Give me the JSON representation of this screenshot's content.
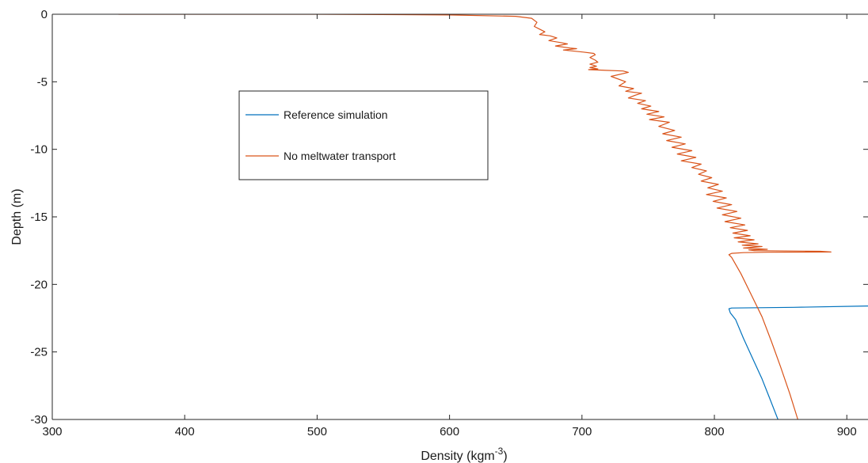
{
  "chart_data": {
    "type": "line",
    "title": "",
    "xlabel_prefix": "Density (kgm",
    "xlabel_sup": "-3",
    "xlabel_suffix": ")",
    "ylabel": "Depth (m)",
    "xlim": [
      300,
      916
    ],
    "ylim": [
      -30,
      0
    ],
    "xticks": [
      300,
      400,
      500,
      600,
      700,
      800,
      900
    ],
    "yticks": [
      0,
      -5,
      -10,
      -15,
      -20,
      -25,
      -30
    ],
    "grid": false,
    "legend_position": "upper-left inside plot area",
    "series": [
      {
        "name": "Reference simulation",
        "color": "#0072BD",
        "x": [
          916,
          860,
          813,
          811,
          812,
          816,
          822,
          829,
          836,
          842,
          848
        ],
        "y": [
          -21.6,
          -21.7,
          -21.75,
          -21.8,
          -22.1,
          -22.6,
          -24.0,
          -25.5,
          -27.0,
          -28.5,
          -30.0
        ]
      },
      {
        "name": "No meltwater transport",
        "color": "#D95319",
        "x": [
          350,
          500,
          600,
          650,
          662,
          666,
          664,
          668,
          672,
          668,
          676,
          681,
          675,
          684,
          689,
          680,
          691,
          696,
          686,
          701,
          709,
          710,
          706,
          710,
          712,
          706,
          711,
          706,
          712,
          705,
          731,
          735,
          722,
          733,
          728,
          739,
          733,
          745,
          740,
          735,
          748,
          742,
          752,
          745,
          758,
          749,
          762,
          751,
          766,
          758,
          770,
          761,
          775,
          764,
          778,
          768,
          783,
          772,
          786,
          775,
          790,
          783,
          794,
          788,
          798,
          790,
          803,
          795,
          806,
          794,
          809,
          799,
          813,
          802,
          817,
          806,
          820,
          808,
          823,
          812,
          825,
          814,
          827,
          815,
          830,
          818,
          833,
          821,
          836,
          822,
          840,
          826,
          830,
          880,
          888,
          840,
          822,
          813,
          811,
          813,
          820,
          828,
          836,
          843,
          850,
          857,
          863
        ],
        "y": [
          0,
          0,
          -0.05,
          -0.15,
          -0.3,
          -0.6,
          -0.9,
          -1.1,
          -1.3,
          -1.5,
          -1.6,
          -1.75,
          -1.95,
          -2.1,
          -2.2,
          -2.35,
          -2.5,
          -2.55,
          -2.65,
          -2.8,
          -2.9,
          -3.0,
          -3.2,
          -3.4,
          -3.55,
          -3.7,
          -3.85,
          -3.95,
          -4.05,
          -4.1,
          -4.2,
          -4.3,
          -4.6,
          -5.0,
          -5.3,
          -5.5,
          -5.7,
          -5.85,
          -6.0,
          -6.2,
          -6.4,
          -6.6,
          -6.8,
          -7.0,
          -7.2,
          -7.4,
          -7.6,
          -7.8,
          -8.0,
          -8.3,
          -8.6,
          -8.85,
          -9.1,
          -9.35,
          -9.6,
          -9.85,
          -10.1,
          -10.35,
          -10.6,
          -10.85,
          -11.1,
          -11.35,
          -11.6,
          -11.85,
          -12.1,
          -12.35,
          -12.6,
          -12.85,
          -13.1,
          -13.35,
          -13.6,
          -13.85,
          -14.1,
          -14.35,
          -14.6,
          -14.85,
          -15.1,
          -15.35,
          -15.6,
          -15.8,
          -16.0,
          -16.2,
          -16.4,
          -16.55,
          -16.7,
          -16.85,
          -17.0,
          -17.1,
          -17.2,
          -17.3,
          -17.4,
          -17.45,
          -17.5,
          -17.55,
          -17.6,
          -17.62,
          -17.65,
          -17.7,
          -17.8,
          -18.0,
          -19.2,
          -20.8,
          -22.4,
          -24.2,
          -26.1,
          -28.1,
          -30.0
        ]
      }
    ]
  }
}
